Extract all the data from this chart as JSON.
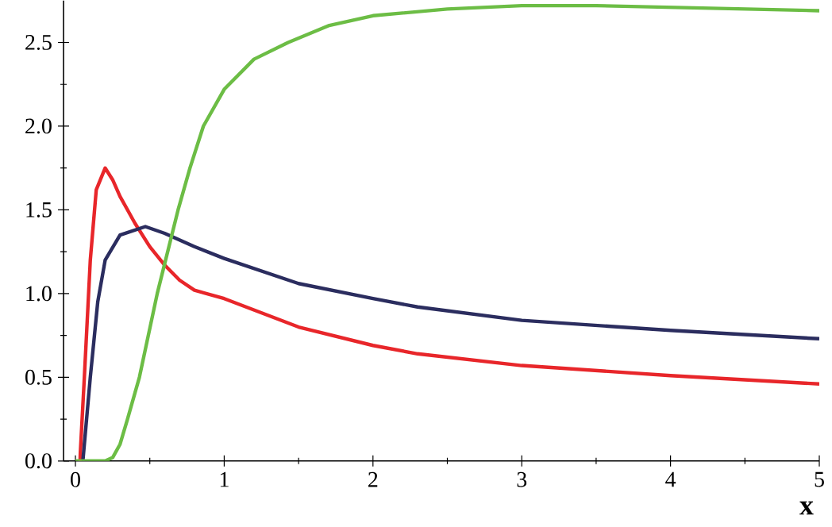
{
  "chart_data": {
    "type": "line",
    "xlabel": "x",
    "xlim": [
      -0.08,
      5
    ],
    "ylim": [
      0,
      2.75
    ],
    "xticks": [
      0,
      1,
      2,
      3,
      4,
      5
    ],
    "yticks": [
      {
        "value": 0,
        "label": "0.0"
      },
      {
        "value": 0.5,
        "label": "0.5"
      },
      {
        "value": 1,
        "label": "1.0"
      },
      {
        "value": 1.5,
        "label": "1.5"
      },
      {
        "value": 2,
        "label": "2.0"
      },
      {
        "value": 2.5,
        "label": "2.5"
      }
    ],
    "grid": false,
    "marker": "none",
    "line_style": "solid",
    "series": [
      {
        "color": "#e8262a",
        "x": [
          0.03,
          0.06,
          0.1,
          0.14,
          0.2,
          0.25,
          0.3,
          0.4,
          0.5,
          0.6,
          0.7,
          0.8,
          1,
          1.5,
          2,
          2.3,
          3,
          4,
          5
        ],
        "values": [
          0,
          0.5,
          1.2,
          1.62,
          1.75,
          1.68,
          1.58,
          1.42,
          1.28,
          1.17,
          1.08,
          1.02,
          0.97,
          0.8,
          0.69,
          0.64,
          0.57,
          0.51,
          0.46
        ]
      },
      {
        "color": "#2b2d5f",
        "x": [
          0.05,
          0.1,
          0.15,
          0.2,
          0.3,
          0.47,
          0.6,
          0.8,
          1,
          1.5,
          2,
          2.3,
          3,
          4,
          5
        ],
        "values": [
          0,
          0.5,
          0.95,
          1.2,
          1.35,
          1.4,
          1.36,
          1.28,
          1.21,
          1.06,
          0.97,
          0.92,
          0.84,
          0.78,
          0.73
        ]
      },
      {
        "color": "#6cbd45",
        "x": [
          0,
          0.2,
          0.25,
          0.3,
          0.35,
          0.43,
          0.55,
          0.62,
          0.69,
          0.77,
          0.86,
          1,
          1.2,
          1.43,
          1.7,
          2,
          2.5,
          3,
          3.5,
          4,
          5
        ],
        "values": [
          0,
          0,
          0.02,
          0.1,
          0.25,
          0.5,
          1.0,
          1.25,
          1.5,
          1.75,
          2.0,
          2.22,
          2.4,
          2.5,
          2.6,
          2.66,
          2.7,
          2.72,
          2.72,
          2.71,
          2.69
        ]
      }
    ]
  }
}
